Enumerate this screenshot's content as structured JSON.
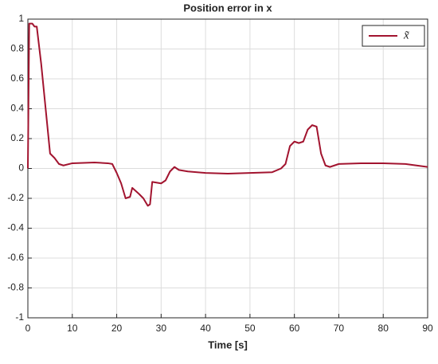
{
  "chart_data": {
    "type": "line",
    "title": "Position error in x",
    "xlabel": "Time [s]",
    "x": [
      0,
      0.3,
      1,
      1.5,
      2,
      3,
      4,
      5,
      6,
      7,
      8,
      10,
      15,
      18,
      19,
      20,
      21,
      22,
      23,
      23.5,
      25,
      26,
      27,
      27.5,
      28,
      30,
      31,
      32,
      33,
      34,
      36,
      40,
      45,
      50,
      55,
      57,
      58,
      59,
      60,
      61,
      62,
      63,
      64,
      65,
      66,
      67,
      68,
      70,
      75,
      80,
      85,
      90
    ],
    "series": [
      {
        "name": "x̃",
        "color": "#a2142f",
        "values": [
          0,
          0.97,
          0.97,
          0.95,
          0.95,
          0.7,
          0.4,
          0.1,
          0.07,
          0.03,
          0.02,
          0.035,
          0.04,
          0.035,
          0.03,
          -0.03,
          -0.1,
          -0.2,
          -0.19,
          -0.13,
          -0.17,
          -0.2,
          -0.25,
          -0.24,
          -0.09,
          -0.1,
          -0.08,
          -0.02,
          0.01,
          -0.01,
          -0.02,
          -0.03,
          -0.035,
          -0.03,
          -0.025,
          0,
          0.03,
          0.15,
          0.18,
          0.17,
          0.18,
          0.26,
          0.29,
          0.28,
          0.1,
          0.02,
          0.01,
          0.03,
          0.035,
          0.035,
          0.03,
          0.01
        ]
      }
    ],
    "xlim": [
      0,
      90
    ],
    "xticks": [
      0,
      10,
      20,
      30,
      40,
      50,
      60,
      70,
      80,
      90
    ],
    "ylim": [
      -1,
      1
    ],
    "yticks": [
      -1,
      -0.8,
      -0.6,
      -0.4,
      -0.2,
      0,
      0.2,
      0.4,
      0.6,
      0.8,
      1
    ],
    "grid": true,
    "legend": "northeast"
  }
}
